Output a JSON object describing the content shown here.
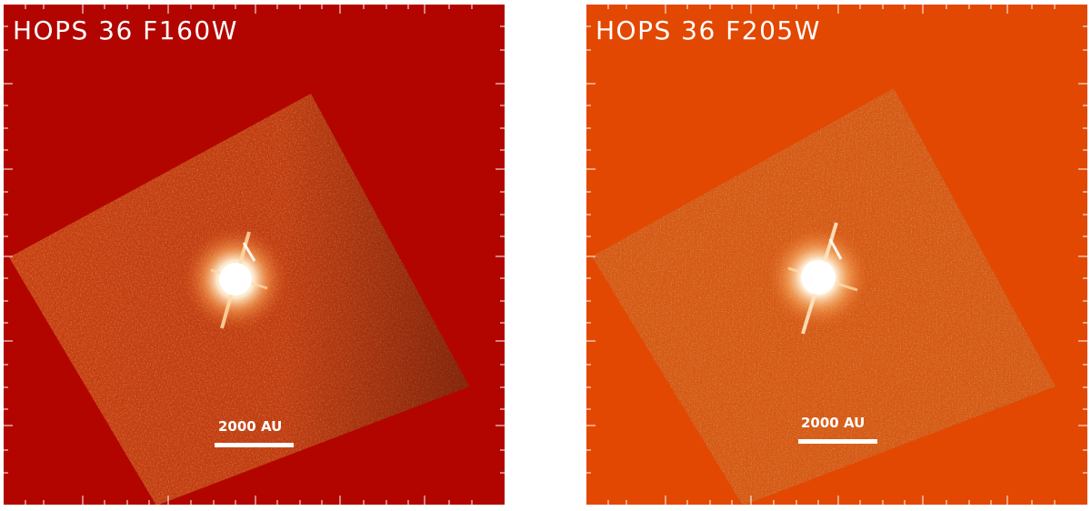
{
  "panels": [
    {
      "title": "HOPS 36 F160W",
      "scalebar_label": "2000 AU",
      "colors": {
        "background": "#b20500",
        "field": "#c93a10",
        "field_light": "#e9792c",
        "field_dark": "#5e0e02",
        "star": "#ffffff"
      }
    },
    {
      "title": "HOPS 36 F205W",
      "scalebar_label": "2000 AU",
      "colors": {
        "background": "#e24802",
        "field": "#d65512",
        "field_light": "#f08a3a",
        "field_dark": "#8a2205",
        "star": "#ffffff"
      }
    }
  ]
}
